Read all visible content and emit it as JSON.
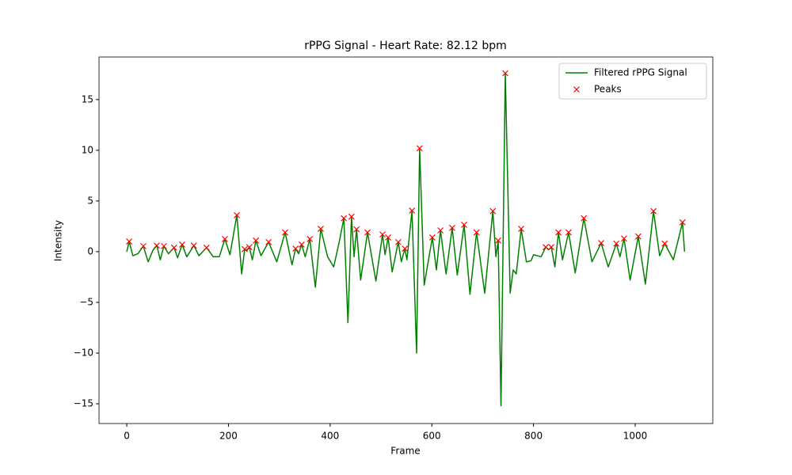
{
  "chart_data": {
    "type": "line",
    "title": "rPPG Signal - Heart Rate: 82.12 bpm",
    "xlabel": "Frame",
    "ylabel": "Intensity",
    "xlim": [
      -54.6,
      1152.6
    ],
    "ylim": [
      -16.95,
      19.2
    ],
    "xticks": [
      0,
      200,
      400,
      600,
      800,
      1000
    ],
    "yticks": [
      {
        "value": -15,
        "label": "−15"
      },
      {
        "value": -10,
        "label": "−10"
      },
      {
        "value": -5,
        "label": "−5"
      },
      0,
      5,
      10,
      15
    ],
    "legend": "upper right",
    "series": [
      {
        "name": "Filtered rPPG Signal",
        "type": "line",
        "color": "green",
        "x": [
          0,
          4.7,
          12,
          22,
          32.7,
          42,
          52,
          59,
          66,
          73,
          82,
          93,
          100,
          109,
          118,
          132,
          142,
          157,
          170,
          182,
          193,
          203,
          216.5,
          226,
          232,
          236,
          241,
          247,
          254,
          264,
          279,
          295,
          311.5,
          325,
          332,
          338,
          344,
          351,
          360,
          371,
          381.6,
          395,
          407,
          418,
          427,
          435,
          442,
          447,
          452,
          460,
          473.5,
          490,
          503,
          508,
          514,
          522,
          534,
          540,
          547,
          551,
          561,
          570,
          576,
          585,
          601,
          609,
          617,
          628,
          640,
          650,
          663.5,
          675,
          688,
          704,
          720,
          726,
          730.5,
          736,
          744.5,
          754,
          760,
          766,
          775.7,
          786,
          795,
          800,
          815,
          824,
          830,
          835,
          842,
          849,
          857,
          869,
          882,
          899,
          915,
          933,
          947,
          963,
          970,
          978,
          990,
          1006,
          1020,
          1036,
          1048,
          1058,
          1075,
          1093,
          1097
        ],
        "values": [
          0,
          1.0,
          -0.4,
          -0.2,
          0.55,
          -1.0,
          0.2,
          0.6,
          -0.8,
          0.55,
          -0.2,
          0.4,
          -0.6,
          0.7,
          -0.5,
          0.6,
          -0.4,
          0.4,
          -0.5,
          -0.5,
          1.25,
          -0.3,
          3.6,
          -2.2,
          0.25,
          0.1,
          0.45,
          -0.8,
          1.1,
          -0.4,
          0.95,
          -1.0,
          1.9,
          -1.3,
          0.3,
          -0.2,
          0.7,
          -0.5,
          1.25,
          -3.5,
          2.25,
          -0.5,
          -1.5,
          1.0,
          3.3,
          -7.0,
          3.45,
          -0.5,
          2.2,
          -2.8,
          1.9,
          -2.9,
          1.7,
          -0.3,
          1.4,
          -2.0,
          0.95,
          -1.0,
          0.3,
          -0.8,
          4.05,
          -10.0,
          10.2,
          -3.3,
          1.4,
          -1.8,
          2.1,
          -2.2,
          2.35,
          -2.3,
          2.65,
          -4.2,
          1.9,
          -4.1,
          4.0,
          -0.5,
          1.1,
          -15.2,
          17.6,
          -4.1,
          -1.8,
          -2.2,
          2.25,
          -1.0,
          -0.9,
          -0.3,
          -0.5,
          0.45,
          0.2,
          0.45,
          -1.5,
          1.9,
          -0.8,
          1.9,
          -2.1,
          3.3,
          -1.0,
          0.85,
          -1.5,
          0.8,
          -0.5,
          1.3,
          -2.8,
          1.5,
          -3.2,
          4.0,
          -0.4,
          0.8,
          -0.8,
          2.9,
          0
        ]
      },
      {
        "name": "Peaks",
        "type": "scatter",
        "color": "red",
        "marker": "x",
        "x": [
          4.7,
          32.7,
          59,
          73,
          93,
          109,
          132,
          157,
          193,
          216.5,
          232,
          241,
          254,
          279,
          311.5,
          332,
          344,
          360,
          381.6,
          427,
          442,
          452,
          473.5,
          503,
          514,
          534,
          547,
          561,
          576,
          601,
          617,
          640,
          663.5,
          688,
          720,
          730.5,
          744.5,
          775.7,
          824,
          835,
          849,
          869,
          899,
          933,
          963,
          978,
          1006,
          1036,
          1058,
          1093
        ],
        "values": [
          1.0,
          0.55,
          0.6,
          0.55,
          0.4,
          0.7,
          0.6,
          0.4,
          1.25,
          3.6,
          0.25,
          0.45,
          1.1,
          0.95,
          1.9,
          0.3,
          0.7,
          1.25,
          2.25,
          3.3,
          3.45,
          2.2,
          1.9,
          1.7,
          1.4,
          0.95,
          0.3,
          4.05,
          10.2,
          1.4,
          2.1,
          2.35,
          2.65,
          1.9,
          4.0,
          1.1,
          17.6,
          2.25,
          0.45,
          0.45,
          1.9,
          1.9,
          3.3,
          0.85,
          0.8,
          1.3,
          1.5,
          4.0,
          0.8,
          2.9
        ]
      }
    ]
  }
}
